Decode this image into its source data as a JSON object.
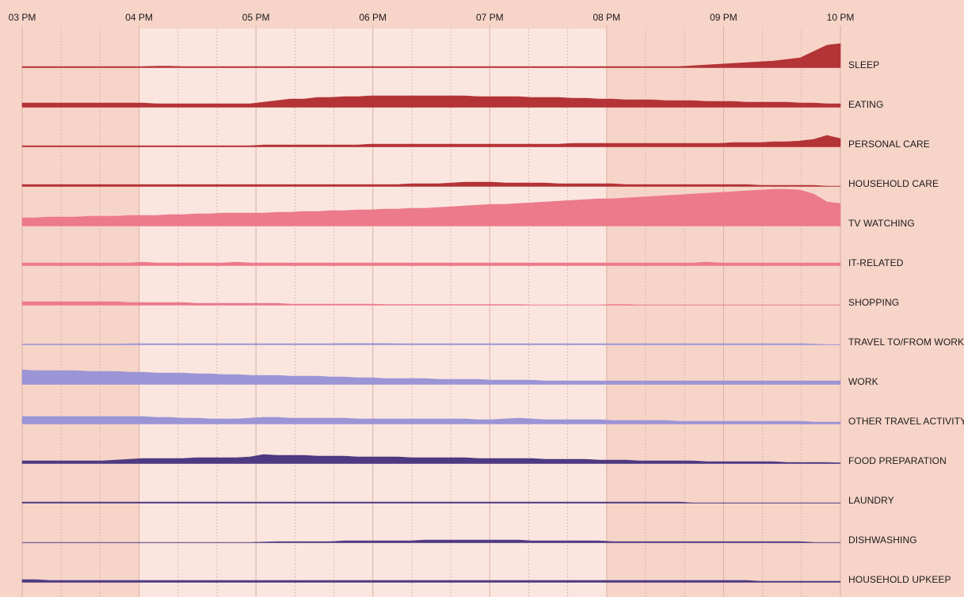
{
  "chart_data": {
    "type": "area",
    "title": "",
    "x_ticks": [
      "03 PM",
      "04 PM",
      "05 PM",
      "06 PM",
      "07 PM",
      "08 PM",
      "09 PM",
      "10 PM"
    ],
    "x_range": [
      15,
      22
    ],
    "highlight_range": [
      16,
      20
    ],
    "x_step_hours": 0.16666,
    "colors": {
      "background": "#f7d4c8",
      "highlight": "#fbe6df",
      "gridline": "#d8b0a5",
      "dotted": "#c9a095",
      "baseline": "#5a5a5a"
    },
    "series": [
      {
        "name": "SLEEP",
        "color": "#b43337",
        "values": [
          1,
          1,
          1,
          1,
          1,
          1,
          1,
          1,
          1,
          1,
          1.5,
          1.5,
          1,
          1,
          1,
          1,
          1,
          1,
          1,
          1,
          1,
          1,
          1,
          1,
          1,
          1,
          1,
          1,
          1,
          1,
          1,
          1,
          1,
          1,
          1,
          1,
          1,
          1,
          1,
          1,
          1,
          1,
          1,
          1,
          1,
          1,
          1,
          1,
          1,
          1,
          2,
          3,
          4,
          5,
          6,
          7,
          8,
          10,
          12,
          20,
          28,
          30
        ]
      },
      {
        "name": "EATING",
        "color": "#b43337",
        "values": [
          5,
          5,
          5,
          5,
          5,
          5,
          5,
          5,
          5,
          5,
          4,
          4,
          4,
          4,
          4,
          4,
          4,
          4,
          6,
          8,
          10,
          10,
          12,
          12,
          13,
          13,
          14,
          14,
          14,
          14,
          14,
          14,
          14,
          14,
          13,
          13,
          13,
          13,
          12,
          12,
          12,
          11,
          11,
          10,
          10,
          9,
          9,
          9,
          8,
          8,
          8,
          7,
          7,
          7,
          6,
          6,
          6,
          6,
          5,
          5,
          4,
          4
        ]
      },
      {
        "name": "PERSONAL CARE",
        "color": "#b43337",
        "values": [
          1,
          1,
          1,
          1,
          1,
          1,
          1,
          1,
          1,
          1,
          1,
          1,
          1,
          1,
          1,
          1,
          1,
          1,
          2,
          2,
          2,
          2,
          2,
          2,
          2,
          2,
          3,
          3,
          3,
          3,
          3,
          3,
          3,
          3,
          3,
          3,
          3,
          3,
          3,
          3,
          3,
          4,
          4,
          4,
          4,
          4,
          4,
          4,
          4,
          4,
          4,
          4,
          4,
          5,
          5,
          5,
          6,
          6,
          7,
          9,
          14,
          10
        ]
      },
      {
        "name": "HOUSEHOLD CARE",
        "color": "#b43337",
        "values": [
          2,
          2,
          2,
          2,
          2,
          2,
          2,
          2,
          2,
          2,
          2,
          2,
          2,
          2,
          2,
          2,
          2,
          2,
          2,
          2,
          2,
          2,
          2,
          2,
          2,
          2,
          2,
          2,
          2,
          3,
          3,
          3,
          4,
          5,
          5,
          5,
          4,
          4,
          4,
          4,
          3,
          3,
          3,
          3,
          3,
          2,
          2,
          2,
          2,
          2,
          2,
          2,
          2,
          2,
          2,
          1,
          1,
          1,
          1,
          1,
          0,
          0
        ]
      },
      {
        "name": "TV WATCHING",
        "color": "#ec7a8a",
        "values": [
          10,
          10,
          11,
          11,
          11,
          12,
          12,
          12,
          13,
          13,
          13,
          14,
          14,
          15,
          15,
          16,
          16,
          16,
          16,
          17,
          17,
          18,
          18,
          19,
          19,
          20,
          20,
          21,
          21,
          22,
          22,
          23,
          24,
          25,
          26,
          27,
          27,
          28,
          29,
          30,
          31,
          32,
          33,
          34,
          34,
          35,
          36,
          37,
          38,
          39,
          40,
          41,
          42,
          43,
          44,
          45,
          46,
          46,
          45,
          40,
          30,
          28
        ]
      },
      {
        "name": "IT-RELATED",
        "color": "#ec7a8a",
        "values": [
          3,
          3,
          3,
          3,
          3,
          3,
          3,
          3,
          3,
          4,
          3,
          3,
          3,
          3,
          3,
          3,
          4,
          3,
          3,
          3,
          3,
          3,
          3,
          3,
          3,
          3,
          3,
          3,
          3,
          3,
          3,
          3,
          3,
          3,
          3,
          3,
          3,
          3,
          3,
          3,
          3,
          3,
          3,
          3,
          3,
          3,
          3,
          3,
          3,
          3,
          3,
          4,
          3,
          3,
          3,
          3,
          3,
          3,
          3,
          3,
          3,
          3
        ]
      },
      {
        "name": "SHOPPING",
        "color": "#ec7a8a",
        "values": [
          4,
          4,
          4,
          4,
          4,
          4,
          4,
          4,
          3,
          3,
          3,
          3,
          3,
          2,
          2,
          2,
          2,
          2,
          2,
          2,
          1,
          1,
          1,
          1,
          1,
          1,
          1,
          0.5,
          0.5,
          0.5,
          0.5,
          0.5,
          0.5,
          0.5,
          0.5,
          0.5,
          0.5,
          0.5,
          0,
          0,
          0,
          0,
          0,
          0,
          0.5,
          0.5,
          0,
          0,
          0,
          0,
          0,
          0,
          0,
          0,
          0,
          0,
          0,
          0,
          0,
          0,
          0,
          0
        ]
      },
      {
        "name": "TRAVEL TO/FROM WORK",
        "color": "#9b95d6",
        "values": [
          0.5,
          0.5,
          0.5,
          0.5,
          0.5,
          0.5,
          0.5,
          0.5,
          1,
          1,
          1,
          1,
          1,
          1,
          1,
          1,
          1,
          1,
          1,
          1,
          1,
          1,
          1,
          1,
          1.2,
          1.2,
          1.2,
          1.2,
          1,
          1,
          1,
          1,
          1,
          1,
          1,
          1,
          1,
          1,
          1,
          1,
          1,
          1,
          1,
          1,
          1,
          1,
          1,
          1,
          1,
          1,
          1,
          1,
          1,
          1,
          1,
          1,
          1,
          1,
          1,
          0.5,
          0,
          0
        ]
      },
      {
        "name": "WORK",
        "color": "#9b95d6",
        "values": [
          18,
          17,
          17,
          17,
          17,
          16,
          16,
          16,
          15,
          15,
          14,
          14,
          14,
          13,
          13,
          12,
          12,
          11,
          11,
          11,
          10,
          10,
          10,
          9,
          9,
          8,
          8,
          7,
          7,
          7,
          7,
          6,
          6,
          6,
          6,
          5,
          5,
          5,
          5,
          4,
          4,
          4,
          4,
          4,
          4,
          4,
          4,
          4,
          4,
          4,
          4,
          4,
          4,
          4,
          4,
          4,
          4,
          4,
          4,
          4,
          4,
          4
        ]
      },
      {
        "name": "OTHER TRAVEL ACTIVITY",
        "color": "#9b95d6",
        "values": [
          9,
          9,
          9,
          9,
          9,
          9,
          9,
          9,
          9,
          9,
          8,
          8,
          7,
          7,
          6,
          6,
          6,
          7,
          8,
          8,
          7,
          7,
          7,
          7,
          7,
          6,
          6,
          6,
          6,
          6,
          6,
          6,
          6,
          6,
          5,
          5,
          6,
          7,
          6,
          5,
          5,
          5,
          5,
          5,
          4,
          4,
          4,
          4,
          4,
          3,
          3,
          3,
          3,
          3,
          3,
          3,
          3,
          3,
          3,
          2,
          2,
          2
        ]
      },
      {
        "name": "FOOD PREPARATION",
        "color": "#4e3a82",
        "values": [
          3,
          3,
          3,
          3,
          3,
          3,
          3,
          4,
          5,
          6,
          6,
          6,
          6,
          7,
          7,
          7,
          7,
          8,
          11,
          10,
          10,
          10,
          9,
          9,
          9,
          8,
          8,
          8,
          8,
          7,
          7,
          7,
          7,
          7,
          6,
          6,
          6,
          6,
          6,
          5,
          5,
          5,
          5,
          4,
          4,
          4,
          3,
          3,
          3,
          3,
          3,
          2,
          2,
          2,
          2,
          2,
          2,
          1,
          1,
          1,
          1,
          0.5
        ]
      },
      {
        "name": "LAUNDRY",
        "color": "#4e3a82",
        "values": [
          1,
          1,
          1,
          1,
          1,
          1,
          1,
          1,
          1,
          1,
          1,
          1,
          1,
          1,
          1,
          1,
          1,
          1,
          1,
          1,
          1,
          1,
          1,
          1,
          1,
          1,
          1,
          1,
          1,
          1,
          1,
          1,
          1,
          1,
          1,
          1,
          1,
          1,
          1,
          1,
          1,
          1,
          1,
          1,
          1,
          1,
          1,
          1,
          1,
          1,
          0,
          0,
          0,
          0,
          0,
          0,
          0,
          0,
          0,
          0,
          0,
          0
        ]
      },
      {
        "name": "DISHWASHING",
        "color": "#4e3a82",
        "values": [
          0,
          0,
          0,
          0,
          0,
          0,
          0,
          0,
          0,
          0,
          0,
          0,
          0,
          0,
          0,
          0,
          0,
          0,
          0.5,
          1,
          1,
          1,
          1,
          1,
          2,
          2,
          2,
          2,
          2,
          2,
          3,
          3,
          3,
          3,
          3,
          3,
          3,
          3,
          2,
          2,
          2,
          2,
          2,
          2,
          1,
          1,
          1,
          1,
          1,
          1,
          1,
          1,
          1,
          1,
          1,
          1,
          1,
          1,
          1,
          0,
          0,
          0
        ]
      },
      {
        "name": "HOUSEHOLD UPKEEP",
        "color": "#4e3a82",
        "values": [
          3,
          3,
          2,
          2,
          2,
          2,
          2,
          2,
          2,
          2,
          2,
          2,
          2,
          2,
          2,
          2,
          2,
          2,
          2,
          2,
          2,
          2,
          2,
          2,
          2,
          2,
          2,
          2,
          2,
          2,
          2,
          2,
          2,
          2,
          2,
          2,
          2,
          2,
          2,
          2,
          2,
          2,
          2,
          2,
          2,
          2,
          2,
          2,
          2,
          2,
          2,
          2,
          2,
          2,
          2,
          1,
          1,
          1,
          1,
          1,
          1,
          1
        ]
      }
    ]
  }
}
